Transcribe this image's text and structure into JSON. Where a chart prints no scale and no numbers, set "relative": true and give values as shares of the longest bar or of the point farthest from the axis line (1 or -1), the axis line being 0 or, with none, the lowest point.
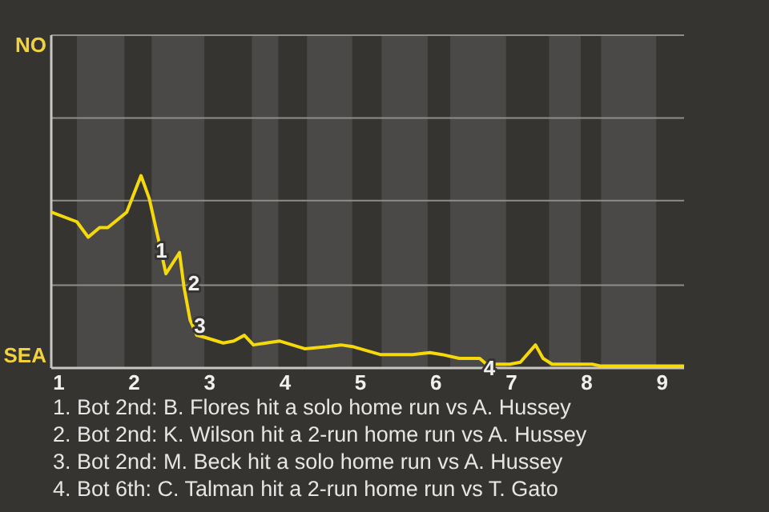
{
  "chart_data": {
    "type": "line",
    "relative": true,
    "x": [
      0.9,
      1.24,
      1.39,
      1.54,
      1.65,
      1.9,
      2.09,
      2.2,
      2.32,
      2.42,
      2.6,
      2.66,
      2.74,
      2.83,
      2.93,
      3.18,
      3.32,
      3.46,
      3.58,
      3.75,
      3.93,
      4.26,
      4.54,
      4.74,
      4.91,
      5.26,
      5.69,
      5.92,
      6.08,
      6.31,
      6.58,
      6.67,
      6.98,
      7.12,
      7.32,
      7.42,
      7.54,
      8.07,
      8.19,
      9.29
    ],
    "series": [
      {
        "color": "#f5d90a",
        "values": [
          0.81,
          0.76,
          0.68,
          0.73,
          0.73,
          0.81,
          1,
          0.88,
          0.67,
          0.49,
          0.6,
          0.42,
          0.25,
          0.17,
          0.16,
          0.13,
          0.14,
          0.17,
          0.12,
          0.13,
          0.14,
          0.1,
          0.11,
          0.12,
          0.11,
          0.07,
          0.07,
          0.08,
          0.07,
          0.05,
          0.05,
          0.02,
          0.02,
          0.03,
          0.12,
          0.05,
          0.02,
          0.02,
          0.01,
          0.01
        ]
      }
    ],
    "xlim": [
      0.9,
      9.29
    ],
    "xticks": [
      1,
      2,
      3,
      4,
      5,
      6,
      7,
      8,
      9
    ],
    "ref_lines": [
      {
        "axis": "y",
        "value": 0.43,
        "color": "#8f8d8a"
      },
      {
        "axis": "y",
        "value": 0.87,
        "color": "#8f8d8a"
      },
      {
        "axis": "y",
        "value": 1.3,
        "color": "#8f8d8a"
      },
      {
        "axis": "y",
        "value": 1.73,
        "color": "#8f8d8a"
      }
    ],
    "bands": [
      {
        "axis": "x",
        "from": 1.24,
        "to": 1.87,
        "color": "#4a4948"
      },
      {
        "axis": "x",
        "from": 2.23,
        "to": 2.93,
        "color": "#4a4948"
      },
      {
        "axis": "x",
        "from": 3.56,
        "to": 3.91,
        "color": "#4a4948"
      },
      {
        "axis": "x",
        "from": 4.29,
        "to": 4.89,
        "color": "#4a4948"
      },
      {
        "axis": "x",
        "from": 5.28,
        "to": 5.89,
        "color": "#4a4948"
      },
      {
        "axis": "x",
        "from": 6.19,
        "to": 6.93,
        "color": "#4a4948"
      },
      {
        "axis": "x",
        "from": 7.5,
        "to": 7.92,
        "color": "#4a4948"
      },
      {
        "axis": "x",
        "from": 8.19,
        "to": 8.92,
        "color": "#4a4948"
      }
    ],
    "annotations": [
      "NO",
      "SEA",
      {
        "text": "1",
        "x": 2.36,
        "y": 0.61
      },
      {
        "text": "2",
        "x": 2.79,
        "y": 0.44
      },
      {
        "text": "3",
        "x": 2.87,
        "y": 0.22
      },
      {
        "text": "4",
        "x": 6.71,
        "y": 0
      },
      "1. Bot 2nd: B. Flores hit a solo home run vs A. Hussey",
      "2. Bot 2nd: K. Wilson hit a 2-run home run vs A. Hussey",
      "3. Bot 2nd: M. Beck hit a solo home run vs A. Hussey",
      "4. Bot 6th: C. Talman hit a 2-run home run vs T. Gato"
    ],
    "line_style": "solid",
    "marker": "none"
  }
}
